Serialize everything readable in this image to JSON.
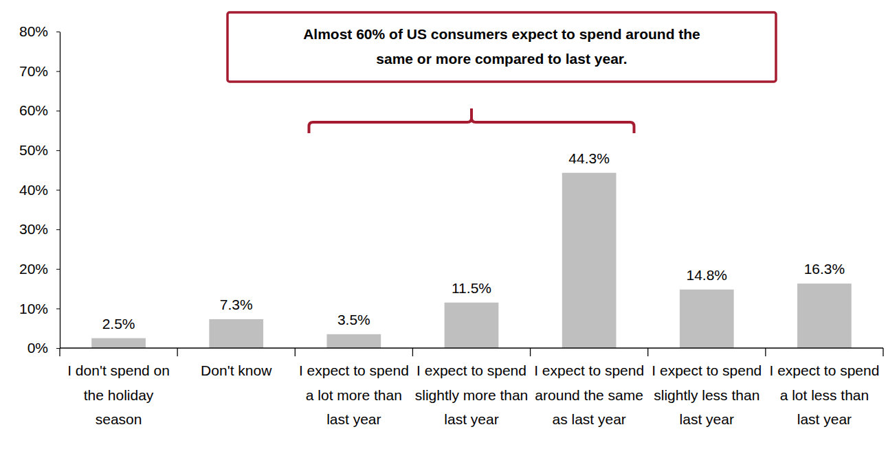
{
  "chart_data": {
    "type": "bar",
    "annotation": [
      "Almost 60% of US consumers expect to spend around the",
      "same or more compared to last year."
    ],
    "categories": [
      "I don't spend on the holiday season",
      "Don't know",
      "I expect to spend a lot more than last year",
      "I expect to spend slightly more than last year",
      "I expect to spend around the same as last year",
      "I expect to spend slightly less than last year",
      "I expect to spend a lot less than last year"
    ],
    "values": [
      2.5,
      7.3,
      3.5,
      11.5,
      44.3,
      14.8,
      16.3
    ],
    "value_labels": [
      "2.5%",
      "7.3%",
      "3.5%",
      "11.5%",
      "44.3%",
      "14.8%",
      "16.3%"
    ],
    "color": "#bfbfbf",
    "ylim": [
      0,
      80
    ],
    "yticks": [
      {
        "value": 0,
        "label": "0%"
      },
      {
        "value": 10,
        "label": "10%"
      },
      {
        "value": 20,
        "label": "20%"
      },
      {
        "value": 30,
        "label": "30%"
      },
      {
        "value": 40,
        "label": "40%"
      },
      {
        "value": 50,
        "label": "50%"
      },
      {
        "value": 60,
        "label": "60%"
      },
      {
        "value": 70,
        "label": "70%"
      },
      {
        "value": 80,
        "label": "80%"
      }
    ],
    "grid": false,
    "data_labels": true
  }
}
